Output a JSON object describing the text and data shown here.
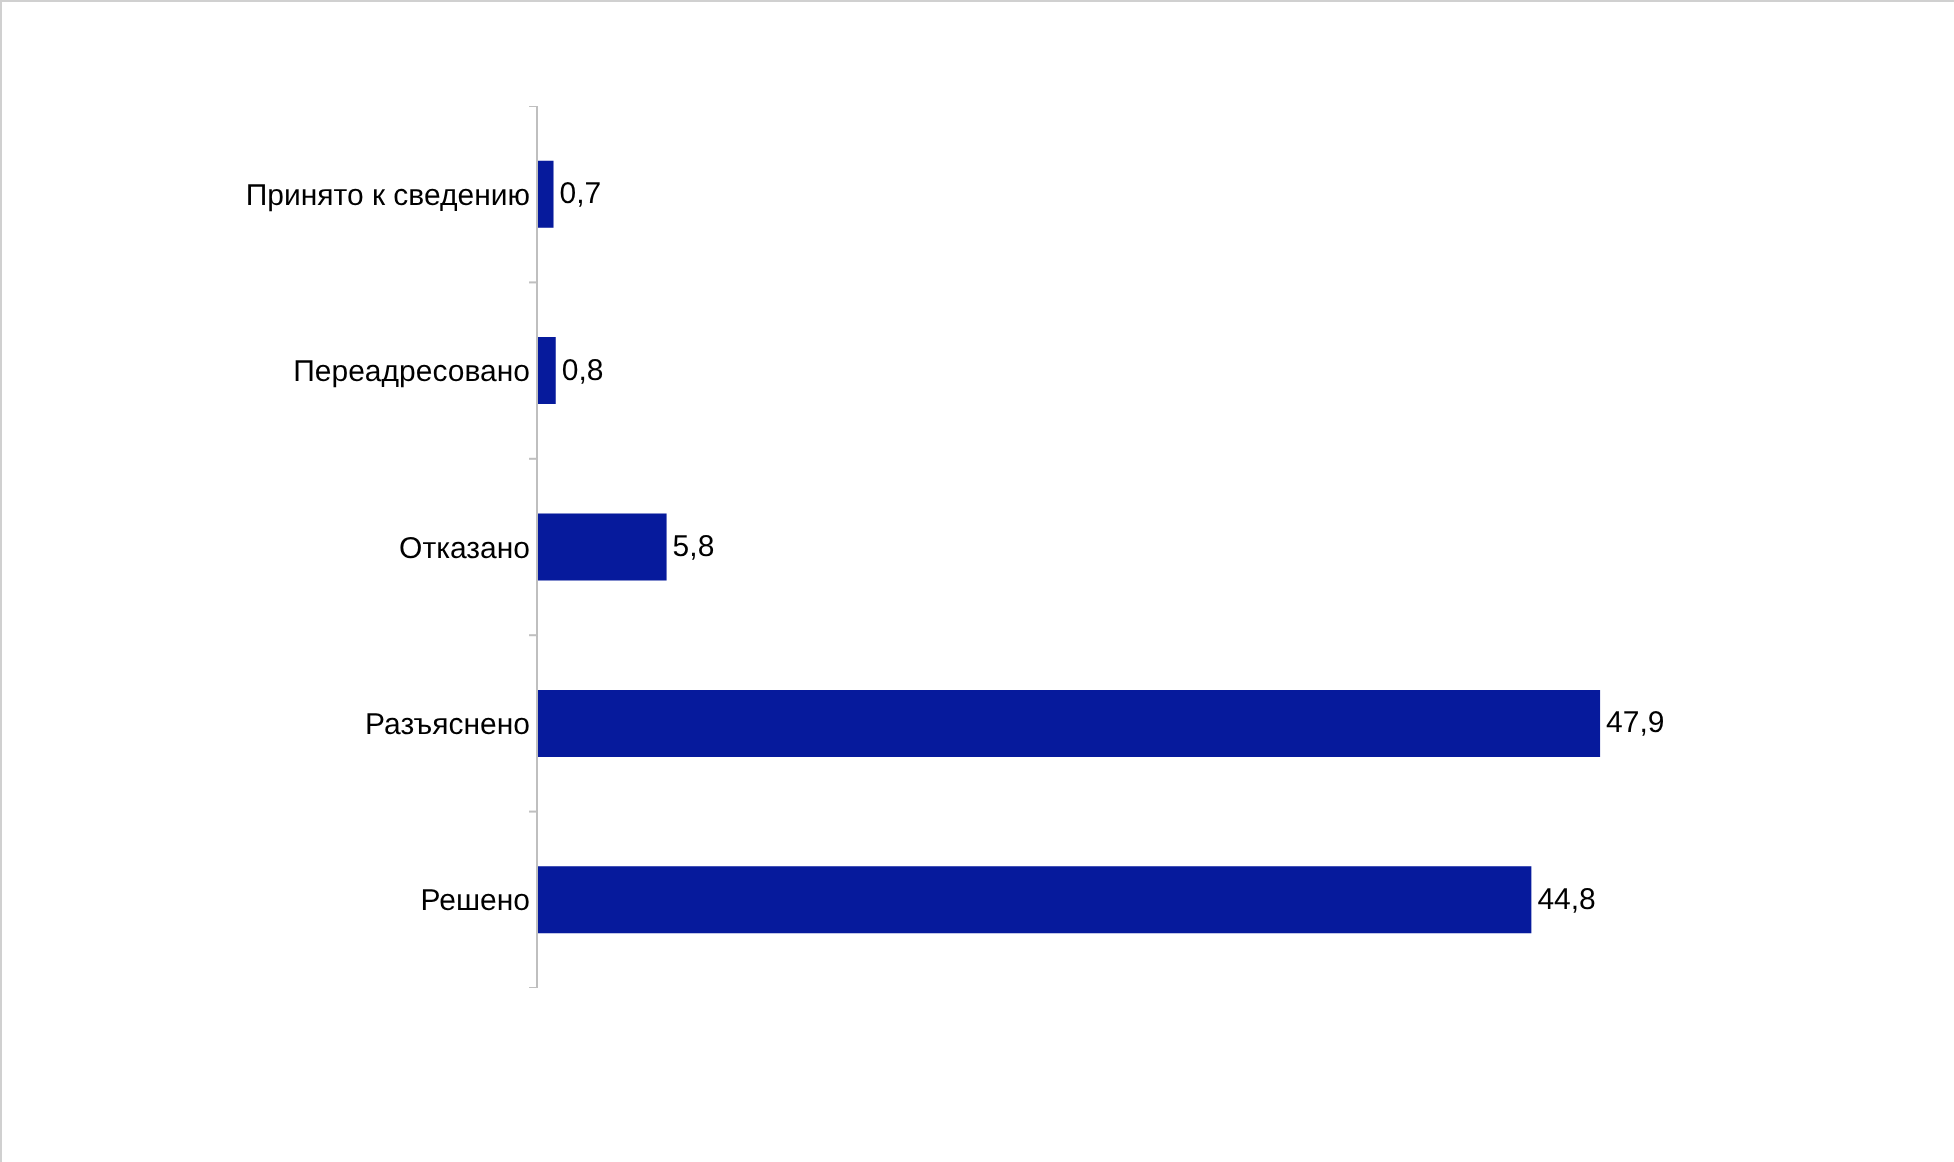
{
  "chart_data": {
    "type": "bar",
    "orientation": "horizontal",
    "categories": [
      "Принято к сведению",
      "Переадресовано",
      "Отказано",
      "Разъяснено",
      "Решено"
    ],
    "values": [
      0.7,
      0.8,
      5.8,
      47.9,
      44.8
    ],
    "value_labels": [
      "0,7",
      "0,8",
      "5,8",
      "47,9",
      "44,8"
    ],
    "color": "#061a9c"
  }
}
